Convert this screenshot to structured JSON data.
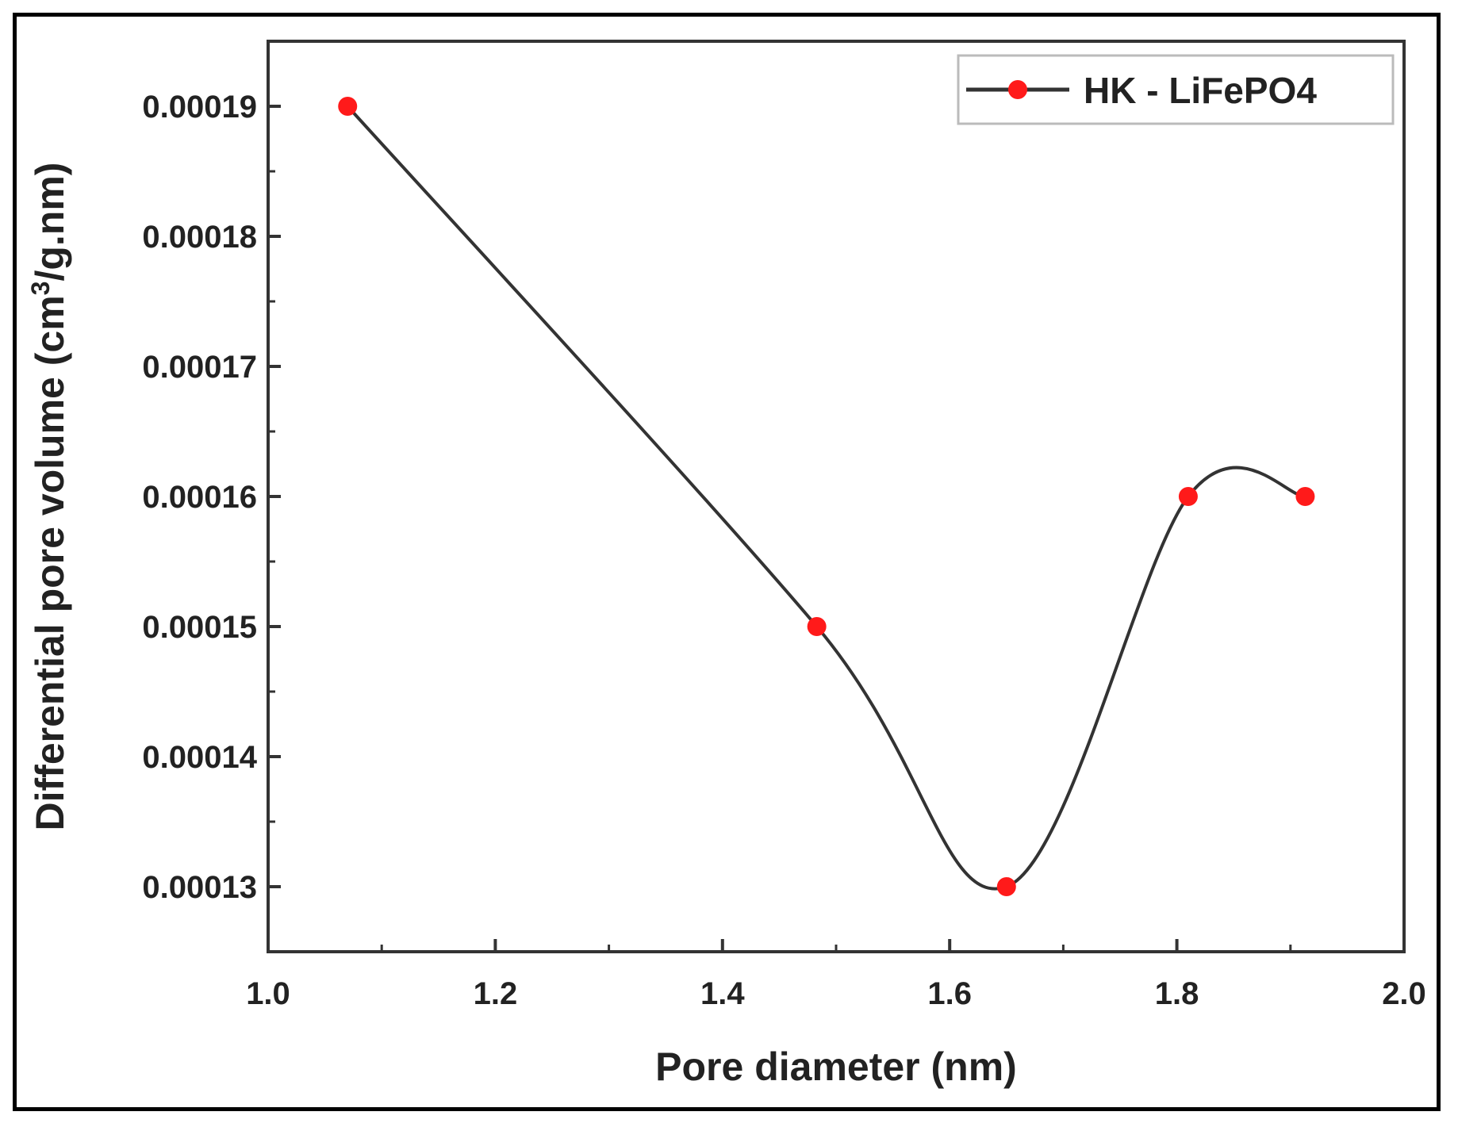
{
  "chart_data": {
    "type": "line",
    "xlabel": "Pore diameter (nm)",
    "ylabel_parts": {
      "prefix": "Differential pore volume (cm",
      "superscript": "3",
      "suffix": "/g.nm)"
    },
    "xlim": [
      1.0,
      2.0
    ],
    "ylim": [
      0.000125,
      0.000195
    ],
    "x_ticks": [
      "1.0",
      "1.2",
      "1.4",
      "1.6",
      "1.8",
      "2.0"
    ],
    "y_ticks": [
      "0.00013",
      "0.00014",
      "0.00015",
      "0.00016",
      "0.00017",
      "0.00018",
      "0.00019"
    ],
    "legend_position": "top-right",
    "smooth_line": true,
    "series": [
      {
        "name": "HK - LiFePO4",
        "line_color": "#333333",
        "marker_color": "#ff1a1a",
        "x": [
          1.07,
          1.483,
          1.65,
          1.81,
          1.913
        ],
        "y": [
          0.00019,
          0.00015,
          0.00013,
          0.00016,
          0.00016
        ]
      }
    ]
  }
}
